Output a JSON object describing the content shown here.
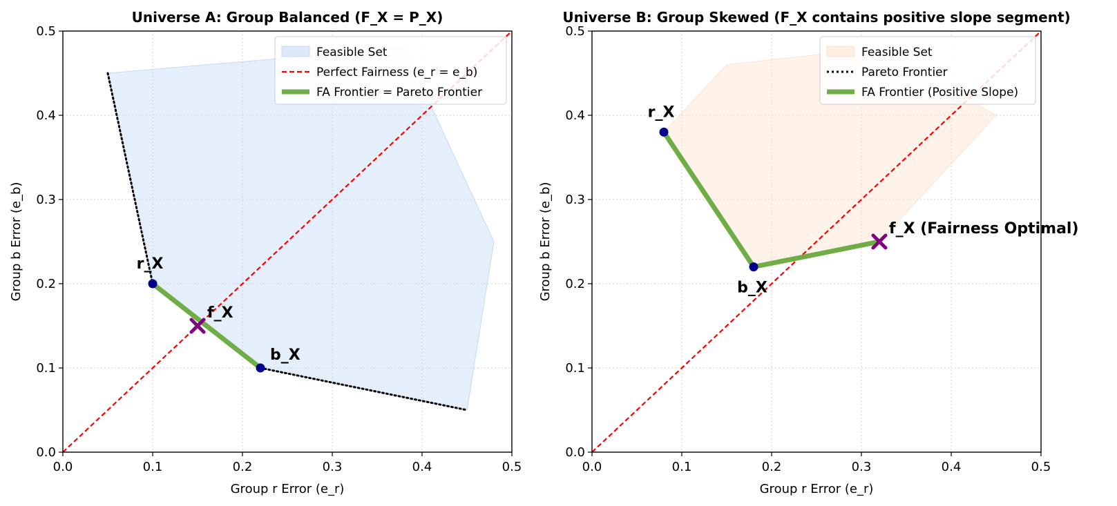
{
  "chart_data": [
    {
      "type": "area",
      "title": "Universe A: Group Balanced (F_X = P_X)",
      "xlabel": "Group r Error (e_r)",
      "ylabel": "Group b Error (e_b)",
      "xlim": [
        0,
        0.5
      ],
      "ylim": [
        0,
        0.5
      ],
      "xticks": [
        "0.0",
        "0.1",
        "0.2",
        "0.3",
        "0.4",
        "0.5"
      ],
      "yticks": [
        "0.0",
        "0.1",
        "0.2",
        "0.3",
        "0.4",
        "0.5"
      ],
      "grid": true,
      "legend_position": "top-right",
      "legend": [
        "Feasible Set",
        "Perfect Fairness (e_r = e_b)",
        "FA Frontier = Pareto Frontier"
      ],
      "feasible_set": {
        "color": "#c6d9f7",
        "points": [
          [
            0.05,
            0.45
          ],
          [
            0.38,
            0.48
          ],
          [
            0.48,
            0.25
          ],
          [
            0.45,
            0.05
          ],
          [
            0.22,
            0.1
          ],
          [
            0.1,
            0.2
          ]
        ]
      },
      "fairness_line": {
        "color": "#ff0000",
        "points": [
          [
            0,
            0
          ],
          [
            0.5,
            0.5
          ]
        ]
      },
      "pareto_frontier": {
        "color": "#000000",
        "points": [
          [
            0.05,
            0.45
          ],
          [
            0.1,
            0.2
          ],
          [
            0.22,
            0.1
          ],
          [
            0.45,
            0.05
          ]
        ]
      },
      "fa_frontier": {
        "color": "#70ad47",
        "points": [
          [
            0.1,
            0.2
          ],
          [
            0.22,
            0.1
          ]
        ]
      },
      "points": [
        {
          "label": "r_X",
          "x": 0.1,
          "y": 0.2,
          "marker": "dot",
          "label_pos": "above"
        },
        {
          "label": "b_X",
          "x": 0.22,
          "y": 0.1,
          "marker": "dot",
          "label_pos": "above-right"
        },
        {
          "label": "f_X",
          "x": 0.15,
          "y": 0.15,
          "marker": "x",
          "label_pos": "above-right"
        }
      ]
    },
    {
      "type": "area",
      "title": "Universe B: Group Skewed (F_X contains positive slope segment)",
      "xlabel": "Group r Error (e_r)",
      "ylabel": "Group b Error (e_b)",
      "xlim": [
        0,
        0.5
      ],
      "ylim": [
        0,
        0.5
      ],
      "xticks": [
        "0.0",
        "0.1",
        "0.2",
        "0.3",
        "0.4",
        "0.5"
      ],
      "yticks": [
        "0.0",
        "0.1",
        "0.2",
        "0.3",
        "0.4",
        "0.5"
      ],
      "grid": true,
      "legend_position": "top-right",
      "legend": [
        "Feasible Set",
        "Pareto Frontier",
        "FA Frontier (Positive Slope)"
      ],
      "feasible_set": {
        "color": "#fde3cf",
        "points": [
          [
            0.08,
            0.38
          ],
          [
            0.15,
            0.46
          ],
          [
            0.32,
            0.48
          ],
          [
            0.45,
            0.4
          ],
          [
            0.32,
            0.25
          ],
          [
            0.18,
            0.22
          ]
        ]
      },
      "fairness_line": {
        "color": "#ff0000",
        "points": [
          [
            0,
            0
          ],
          [
            0.5,
            0.5
          ]
        ]
      },
      "pareto_frontier": {
        "color": "#000000",
        "points": []
      },
      "fa_frontier": {
        "color": "#70ad47",
        "points": [
          [
            0.08,
            0.38
          ],
          [
            0.18,
            0.22
          ],
          [
            0.32,
            0.25
          ]
        ]
      },
      "points": [
        {
          "label": "r_X",
          "x": 0.08,
          "y": 0.38,
          "marker": "dot",
          "label_pos": "above"
        },
        {
          "label": "b_X",
          "x": 0.18,
          "y": 0.22,
          "marker": "dot",
          "label_pos": "below"
        },
        {
          "label": "f_X (Fairness Optimal)",
          "x": 0.32,
          "y": 0.25,
          "marker": "x",
          "label_pos": "above-right"
        }
      ]
    }
  ],
  "colors": {
    "point_dot": "#00008b",
    "point_x": "#800080",
    "grid": "#cccccc",
    "axis": "#000000"
  }
}
